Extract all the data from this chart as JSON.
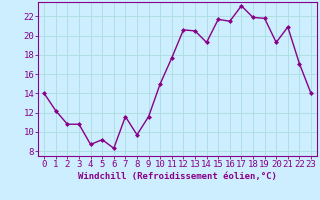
{
  "x": [
    0,
    1,
    2,
    3,
    4,
    5,
    6,
    7,
    8,
    9,
    10,
    11,
    12,
    13,
    14,
    15,
    16,
    17,
    18,
    19,
    20,
    21,
    22,
    23
  ],
  "y": [
    14,
    12.2,
    10.8,
    10.8,
    8.7,
    9.2,
    8.3,
    11.6,
    9.7,
    11.6,
    15.0,
    17.7,
    20.6,
    20.5,
    19.3,
    21.7,
    21.5,
    23.1,
    21.9,
    21.8,
    19.3,
    20.9,
    17.1,
    14.0
  ],
  "line_color": "#880088",
  "marker": "D",
  "markersize": 2.0,
  "linewidth": 1.0,
  "bg_color": "#cceeff",
  "grid_color": "#aadddd",
  "xlabel": "Windchill (Refroidissement éolien,°C)",
  "xlabel_fontsize": 6.5,
  "xtick_labels": [
    "0",
    "1",
    "2",
    "3",
    "4",
    "5",
    "6",
    "7",
    "8",
    "9",
    "10",
    "11",
    "12",
    "13",
    "14",
    "15",
    "16",
    "17",
    "18",
    "19",
    "20",
    "21",
    "22",
    "23"
  ],
  "ytick_values": [
    8,
    10,
    12,
    14,
    16,
    18,
    20,
    22
  ],
  "xlim": [
    -0.5,
    23.5
  ],
  "ylim": [
    7.5,
    23.5
  ],
  "tick_fontsize": 6.5
}
